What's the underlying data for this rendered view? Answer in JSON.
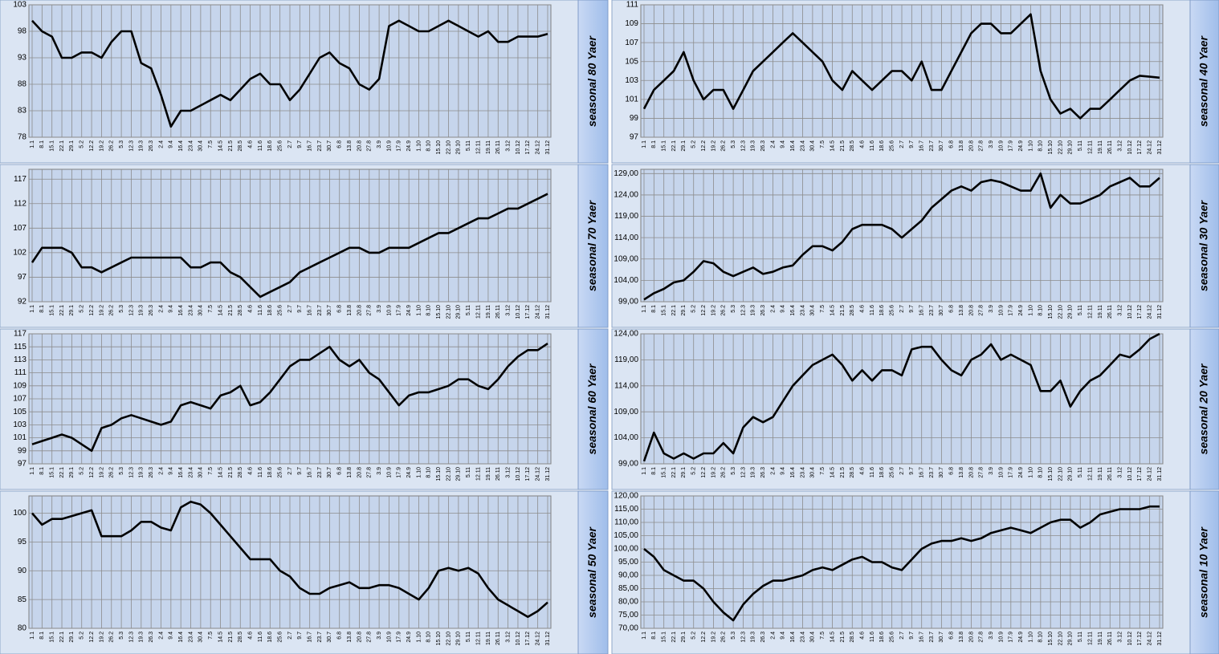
{
  "chart_data": [
    {
      "type": "line",
      "title": "seasonal 80 Yaer",
      "color": "#000000",
      "grid": true,
      "categories": [
        "1.1",
        "8.1",
        "15.1",
        "22.1",
        "29.1",
        "5.2",
        "12.2",
        "19.2",
        "26.2",
        "5.3",
        "12.3",
        "19.3",
        "26.3",
        "2.4",
        "9.4",
        "16.4",
        "23.4",
        "30.4",
        "7.5",
        "14.5",
        "21.5",
        "28.5",
        "4.6",
        "11.6",
        "18.6",
        "25.6",
        "2.7",
        "9.7",
        "16.7",
        "23.7",
        "30.7",
        "6.8",
        "13.8",
        "20.8",
        "27.8",
        "3.9",
        "10.9",
        "17.9",
        "24.9",
        "1.10",
        "8.10",
        "15.10",
        "22.10",
        "29.10",
        "5.11",
        "12.11",
        "19.11",
        "26.11",
        "3.12",
        "10.12",
        "17.12",
        "24.12",
        "31.12"
      ],
      "values": [
        100,
        98,
        97,
        93,
        93,
        94,
        94,
        93,
        96,
        98,
        98,
        92,
        91,
        86,
        80,
        83,
        83,
        84,
        85,
        86,
        85,
        87,
        89,
        90,
        88,
        88,
        85,
        87,
        90,
        93,
        94,
        92,
        91,
        88,
        87,
        89,
        99,
        100,
        99,
        98,
        98,
        99,
        100,
        99,
        98,
        97,
        98,
        96,
        96,
        97,
        97,
        97,
        97.5
      ],
      "ylim": [
        78,
        103
      ],
      "yticks": [
        78,
        83,
        88,
        93,
        98,
        103
      ]
    },
    {
      "type": "line",
      "title": "seasonal 40 Yaer",
      "color": "#000000",
      "grid": true,
      "categories": [
        "1.1",
        "8.1",
        "15.1",
        "22.1",
        "29.1",
        "5.2",
        "12.2",
        "19.2",
        "26.2",
        "5.3",
        "12.3",
        "19.3",
        "26.3",
        "2.4",
        "9.4",
        "16.4",
        "23.4",
        "30.4",
        "7.5",
        "14.5",
        "21.5",
        "28.5",
        "4.6",
        "11.6",
        "18.6",
        "25.6",
        "2.7",
        "9.7",
        "16.7",
        "23.7",
        "30.7",
        "6.8",
        "13.8",
        "20.8",
        "27.8",
        "3.9",
        "10.9",
        "17.9",
        "24.9",
        "1.10",
        "8.10",
        "15.10",
        "22.10",
        "29.10",
        "5.11",
        "12.11",
        "19.11",
        "26.11",
        "3.12",
        "10.12",
        "17.12",
        "24.12",
        "31.12"
      ],
      "values": [
        100,
        102,
        103,
        104,
        106,
        103,
        101,
        102,
        102,
        100,
        102,
        104,
        105,
        106,
        107,
        108,
        107,
        106,
        105,
        103,
        102,
        104,
        103,
        102,
        103,
        104,
        104,
        103,
        105,
        102,
        102,
        104,
        106,
        108,
        109,
        109,
        108,
        108,
        109,
        110,
        104,
        101,
        99.5,
        100,
        99,
        100,
        100,
        101,
        102,
        103,
        103.5,
        103.4,
        103.3
      ],
      "ylim": [
        97,
        111
      ],
      "yticks": [
        97,
        99,
        101,
        103,
        105,
        107,
        109,
        111
      ]
    },
    {
      "type": "line",
      "title": "seasonal 70 Yaer",
      "color": "#000000",
      "grid": true,
      "categories": [
        "1.1",
        "8.1",
        "15.1",
        "22.1",
        "29.1",
        "5.2",
        "12.2",
        "19.2",
        "26.2",
        "5.3",
        "12.3",
        "19.3",
        "26.3",
        "2.4",
        "9.4",
        "16.4",
        "23.4",
        "30.4",
        "7.5",
        "14.5",
        "21.5",
        "28.5",
        "4.6",
        "11.6",
        "18.6",
        "25.6",
        "2.7",
        "9.7",
        "16.7",
        "23.7",
        "30.7",
        "6.8",
        "13.8",
        "20.8",
        "27.8",
        "3.9",
        "10.9",
        "17.9",
        "24.9",
        "1.10",
        "8.10",
        "15.10",
        "22.10",
        "29.10",
        "5.11",
        "12.11",
        "19.11",
        "26.11",
        "3.12",
        "10.12",
        "17.12",
        "24.12",
        "31.12"
      ],
      "values": [
        100,
        103,
        103,
        103,
        102,
        99,
        99,
        98,
        99,
        100,
        101,
        101,
        101,
        101,
        101,
        101,
        99,
        99,
        100,
        100,
        98,
        97,
        95,
        93,
        94,
        95,
        96,
        98,
        99,
        100,
        101,
        102,
        103,
        103,
        102,
        102,
        103,
        103,
        103,
        104,
        105,
        106,
        106,
        107,
        108,
        109,
        109,
        110,
        111,
        111,
        112,
        113,
        114
      ],
      "ylim": [
        92,
        119
      ],
      "yticks": [
        92,
        97,
        102,
        107,
        112,
        117
      ]
    },
    {
      "type": "line",
      "title": "seasonal 30 Yaer",
      "color": "#000000",
      "grid": true,
      "categories": [
        "1.1",
        "8.1",
        "15.1",
        "22.1",
        "29.1",
        "5.2",
        "12.2",
        "19.2",
        "26.2",
        "5.3",
        "12.3",
        "19.3",
        "26.3",
        "2.4",
        "9.4",
        "16.4",
        "23.4",
        "30.4",
        "7.5",
        "14.5",
        "21.5",
        "28.5",
        "4.6",
        "11.6",
        "18.6",
        "25.6",
        "2.7",
        "9.7",
        "16.7",
        "23.7",
        "30.7",
        "6.8",
        "13.8",
        "20.8",
        "27.8",
        "3.9",
        "10.9",
        "17.9",
        "24.9",
        "1.10",
        "8.10",
        "15.10",
        "22.10",
        "29.10",
        "5.11",
        "12.11",
        "19.11",
        "26.11",
        "3.12",
        "10.12",
        "17.12",
        "24.12",
        "31.12"
      ],
      "values": [
        99.5,
        101,
        102,
        103.5,
        104,
        106,
        108.5,
        108,
        106,
        105,
        106,
        107,
        105.5,
        106,
        107,
        107.5,
        110,
        112,
        112,
        111,
        113,
        116,
        117,
        117,
        117,
        116,
        114,
        116,
        118,
        121,
        123,
        125,
        126,
        125,
        127,
        127.5,
        127,
        126,
        125,
        125,
        129,
        121,
        124,
        122,
        122,
        123,
        124,
        126,
        127,
        128,
        126,
        126,
        128
      ],
      "ylim": [
        99,
        130
      ],
      "yticks": [
        {
          "value": 99,
          "label": "99,00"
        },
        {
          "value": 104,
          "label": "104,00"
        },
        {
          "value": 109,
          "label": "109,00"
        },
        {
          "value": 114,
          "label": "114,00"
        },
        {
          "value": 119,
          "label": "119,00"
        },
        {
          "value": 124,
          "label": "124,00"
        },
        {
          "value": 129,
          "label": "129,00"
        }
      ]
    },
    {
      "type": "line",
      "title": "seasonal 60 Yaer",
      "color": "#000000",
      "grid": true,
      "categories": [
        "1.1",
        "8.1",
        "15.1",
        "22.1",
        "29.1",
        "5.2",
        "12.2",
        "19.2",
        "26.2",
        "5.3",
        "12.3",
        "19.3",
        "26.3",
        "2.4",
        "9.4",
        "16.4",
        "23.4",
        "30.4",
        "7.5",
        "14.5",
        "21.5",
        "28.5",
        "4.6",
        "11.6",
        "18.6",
        "25.6",
        "2.7",
        "9.7",
        "16.7",
        "23.7",
        "30.7",
        "6.8",
        "13.8",
        "20.8",
        "27.8",
        "3.9",
        "10.9",
        "17.9",
        "24.9",
        "1.10",
        "8.10",
        "15.10",
        "22.10",
        "29.10",
        "5.11",
        "12.11",
        "19.11",
        "26.11",
        "3.12",
        "10.12",
        "17.12",
        "24.12",
        "31.12"
      ],
      "values": [
        100,
        100.5,
        101,
        101.5,
        101,
        100,
        99,
        102.5,
        103,
        104,
        104.5,
        104,
        103.5,
        103,
        103.5,
        106,
        106.5,
        106,
        105.5,
        107.5,
        108,
        109,
        106,
        106.5,
        108,
        110,
        112,
        113,
        113,
        114,
        115,
        113,
        112,
        113,
        111,
        110,
        108,
        106,
        107.5,
        108,
        108,
        108.5,
        109,
        110,
        110,
        109,
        108.5,
        110,
        112,
        113.5,
        114.5,
        114.5,
        115.5
      ],
      "ylim": [
        97,
        117
      ],
      "yticks": [
        97,
        99,
        101,
        103,
        105,
        107,
        109,
        111,
        113,
        115,
        117
      ]
    },
    {
      "type": "line",
      "title": "seasonal 20 Yaer",
      "color": "#000000",
      "grid": true,
      "categories": [
        "1.1",
        "8.1",
        "15.1",
        "22.1",
        "29.1",
        "5.2",
        "12.2",
        "19.2",
        "26.2",
        "5.3",
        "12.3",
        "19.3",
        "26.3",
        "2.4",
        "9.4",
        "16.4",
        "23.4",
        "30.4",
        "7.5",
        "14.5",
        "21.5",
        "28.5",
        "4.6",
        "11.6",
        "18.6",
        "25.6",
        "2.7",
        "9.7",
        "16.7",
        "23.7",
        "30.7",
        "6.8",
        "13.8",
        "20.8",
        "27.8",
        "3.9",
        "10.9",
        "17.9",
        "24.9",
        "1.10",
        "8.10",
        "15.10",
        "22.10",
        "29.10",
        "5.11",
        "12.11",
        "19.11",
        "26.11",
        "3.12",
        "10.12",
        "17.12",
        "24.12",
        "31.12"
      ],
      "values": [
        99.5,
        105,
        101,
        100,
        101,
        100,
        101,
        101,
        103,
        101,
        106,
        108,
        107,
        108,
        111,
        114,
        116,
        118,
        119,
        120,
        118,
        115,
        117,
        115,
        117,
        117,
        116,
        121,
        121.5,
        121.5,
        119,
        117,
        116,
        119,
        120,
        122,
        119,
        120,
        119,
        118,
        113,
        113,
        115,
        110,
        113,
        115,
        116,
        118,
        120,
        119.5,
        121,
        123,
        124
      ],
      "ylim": [
        99,
        124
      ],
      "yticks": [
        {
          "value": 99,
          "label": "99,00"
        },
        {
          "value": 104,
          "label": "104,00"
        },
        {
          "value": 109,
          "label": "109,00"
        },
        {
          "value": 114,
          "label": "114,00"
        },
        {
          "value": 119,
          "label": "119,00"
        },
        {
          "value": 124,
          "label": "124,00"
        }
      ]
    },
    {
      "type": "line",
      "title": "seasonal 50 Yaer",
      "color": "#000000",
      "grid": true,
      "categories": [
        "1.1",
        "8.1",
        "15.1",
        "22.1",
        "29.1",
        "5.2",
        "12.2",
        "19.2",
        "26.2",
        "5.3",
        "12.3",
        "19.3",
        "26.3",
        "2.4",
        "9.4",
        "16.4",
        "23.4",
        "30.4",
        "7.5",
        "14.5",
        "21.5",
        "28.5",
        "4.6",
        "11.6",
        "18.6",
        "25.6",
        "2.7",
        "9.7",
        "16.7",
        "23.7",
        "30.7",
        "6.8",
        "13.8",
        "20.8",
        "27.8",
        "3.9",
        "10.9",
        "17.9",
        "24.9",
        "1.10",
        "8.10",
        "15.10",
        "22.10",
        "29.10",
        "5.11",
        "12.11",
        "19.11",
        "26.11",
        "3.12",
        "10.12",
        "17.12",
        "24.12",
        "31.12"
      ],
      "values": [
        100,
        98,
        99,
        99,
        99.5,
        100,
        100.5,
        96,
        96,
        96,
        97,
        98.5,
        98.5,
        97.5,
        97,
        101,
        102,
        101.5,
        100,
        98,
        96,
        94,
        92,
        92,
        92,
        90,
        89,
        87,
        86,
        86,
        87,
        87.5,
        88,
        87,
        87,
        87.5,
        87.5,
        87,
        86,
        85,
        87,
        90,
        90.5,
        90,
        90.5,
        89.5,
        87,
        85,
        84,
        83,
        82,
        83,
        84.5
      ],
      "ylim": [
        80,
        103
      ],
      "yticks": [
        80,
        85,
        90,
        95,
        100
      ]
    },
    {
      "type": "line",
      "title": "seasonal 10 Yaer",
      "color": "#000000",
      "grid": true,
      "categories": [
        "1.1",
        "8.1",
        "15.1",
        "22.1",
        "29.1",
        "5.2",
        "12.2",
        "19.2",
        "26.2",
        "5.3",
        "12.3",
        "19.3",
        "26.3",
        "2.4",
        "9.4",
        "16.4",
        "23.4",
        "30.4",
        "7.5",
        "14.5",
        "21.5",
        "28.5",
        "4.6",
        "11.6",
        "18.6",
        "25.6",
        "2.7",
        "9.7",
        "16.7",
        "23.7",
        "30.7",
        "6.8",
        "13.8",
        "20.8",
        "27.8",
        "3.9",
        "10.9",
        "17.9",
        "24.9",
        "1.10",
        "8.10",
        "15.10",
        "22.10",
        "29.10",
        "5.11",
        "12.11",
        "19.11",
        "26.11",
        "3.12",
        "10.12",
        "17.12",
        "24.12",
        "31.12"
      ],
      "values": [
        100,
        97,
        92,
        90,
        88,
        88,
        85,
        80,
        76,
        73,
        79,
        83,
        86,
        88,
        88,
        89,
        90,
        92,
        93,
        92,
        94,
        96,
        97,
        95,
        95,
        93,
        92,
        96,
        100,
        102,
        103,
        103,
        104,
        103,
        104,
        106,
        107,
        108,
        107,
        106,
        108,
        110,
        111,
        111,
        108,
        110,
        113,
        114,
        115,
        115,
        115,
        116,
        116
      ],
      "ylim": [
        70,
        120
      ],
      "yticks": [
        {
          "value": 70,
          "label": "70,00"
        },
        {
          "value": 75,
          "label": "75,00"
        },
        {
          "value": 80,
          "label": "80,00"
        },
        {
          "value": 85,
          "label": "85,00"
        },
        {
          "value": 90,
          "label": "90,00"
        },
        {
          "value": 95,
          "label": "95,00"
        },
        {
          "value": 100,
          "label": "100,00"
        },
        {
          "value": 105,
          "label": "105,00"
        },
        {
          "value": 110,
          "label": "110,00"
        },
        {
          "value": 115,
          "label": "115,00"
        },
        {
          "value": 120,
          "label": "120,00"
        }
      ]
    }
  ]
}
